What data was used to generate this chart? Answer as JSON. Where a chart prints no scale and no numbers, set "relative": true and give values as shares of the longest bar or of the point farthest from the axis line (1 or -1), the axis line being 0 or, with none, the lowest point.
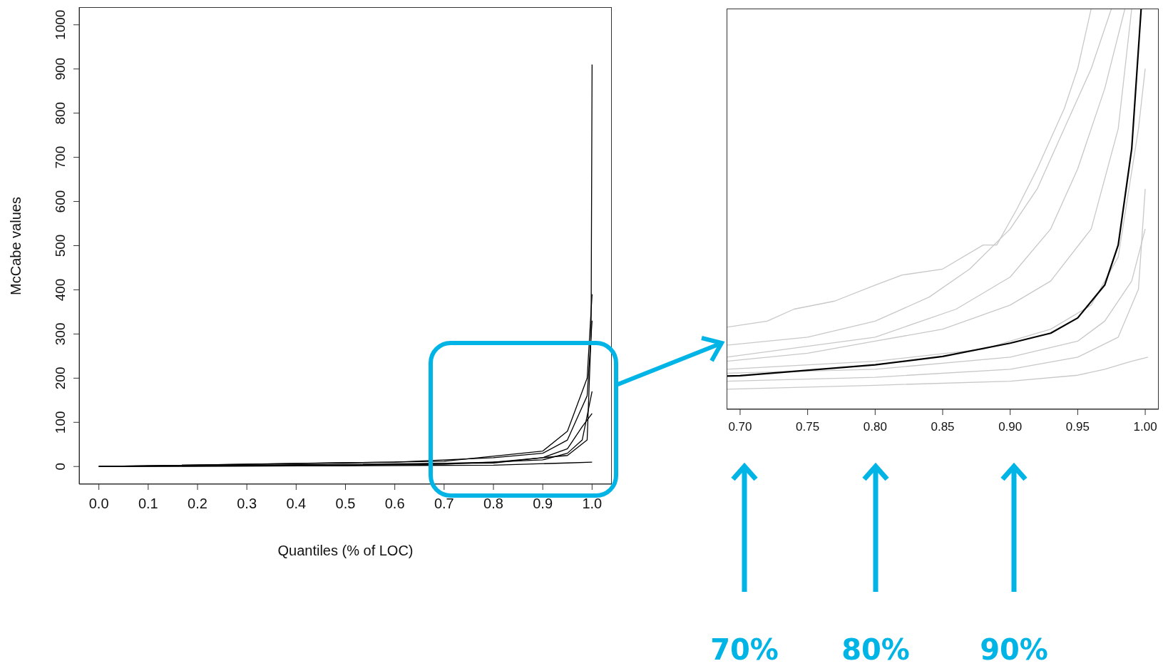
{
  "chart_data": [
    {
      "type": "line",
      "xlabel": "Quantiles (% of LOC)",
      "ylabel": "McCabe values",
      "xlim": [
        -0.04,
        1.04
      ],
      "ylim": [
        -40,
        1040
      ],
      "xticks": [
        {
          "value": 0,
          "label": "0.0"
        },
        {
          "value": 0.1,
          "label": "0.1"
        },
        {
          "value": 0.2,
          "label": "0.2"
        },
        {
          "value": 0.3,
          "label": "0.3"
        },
        {
          "value": 0.4,
          "label": "0.4"
        },
        {
          "value": 0.5,
          "label": "0.5"
        },
        {
          "value": 0.6,
          "label": "0.6"
        },
        {
          "value": 0.7,
          "label": "0.7"
        },
        {
          "value": 0.8,
          "label": "0.8"
        },
        {
          "value": 0.9,
          "label": "0.9"
        },
        {
          "value": 1,
          "label": "1.0"
        }
      ],
      "yticks": [
        0,
        100,
        200,
        300,
        400,
        500,
        600,
        700,
        800,
        900,
        1000
      ],
      "series": [
        {
          "color": "#000000",
          "x": [
            0,
            0.5,
            0.8,
            0.95,
            0.99,
            0.998,
            1.0
          ],
          "values": [
            0,
            2,
            10,
            25,
            60,
            300,
            910
          ]
        },
        {
          "color": "#000000",
          "x": [
            0,
            0.7,
            0.9,
            0.95,
            0.98,
            0.99,
            1.0
          ],
          "values": [
            0,
            12,
            35,
            80,
            170,
            200,
            390
          ]
        },
        {
          "color": "#000000",
          "x": [
            0,
            0.6,
            0.8,
            0.9,
            0.95,
            0.97,
            0.99,
            1.0
          ],
          "values": [
            0,
            10,
            20,
            30,
            60,
            110,
            160,
            330
          ]
        },
        {
          "color": "#000000",
          "x": [
            0,
            0.7,
            0.9,
            0.95,
            0.98,
            1.0
          ],
          "values": [
            0,
            5,
            15,
            30,
            60,
            170
          ]
        },
        {
          "color": "#000000",
          "x": [
            0,
            0.8,
            0.9,
            0.95,
            0.98,
            1.0
          ],
          "values": [
            0,
            8,
            20,
            40,
            90,
            120
          ]
        },
        {
          "color": "#000000",
          "x": [
            0,
            0.8,
            0.95,
            1.0
          ],
          "values": [
            0,
            3,
            8,
            10
          ]
        }
      ]
    },
    {
      "type": "line",
      "relative": true,
      "xlim": [
        0.69,
        1.01
      ],
      "xticks": [
        {
          "value": 0.7,
          "label": "0.70"
        },
        {
          "value": 0.75,
          "label": "0.75"
        },
        {
          "value": 0.8,
          "label": "0.80"
        },
        {
          "value": 0.85,
          "label": "0.85"
        },
        {
          "value": 0.9,
          "label": "0.90"
        },
        {
          "value": 0.95,
          "label": "0.95"
        },
        {
          "value": 1,
          "label": "1.00"
        }
      ],
      "annotations": [
        "70%",
        "80%",
        "90%"
      ],
      "series": [
        {
          "color": "#c8c8c8",
          "x": [
            0.69,
            0.72,
            0.74,
            0.77,
            0.8,
            0.82,
            0.85,
            0.88,
            0.89,
            0.905,
            0.92,
            0.94,
            0.95,
            0.96
          ],
          "values": [
            0.205,
            0.22,
            0.25,
            0.27,
            0.31,
            0.335,
            0.35,
            0.41,
            0.41,
            0.5,
            0.6,
            0.75,
            0.85,
            1.0
          ]
        },
        {
          "color": "#c8c8c8",
          "x": [
            0.69,
            0.75,
            0.8,
            0.84,
            0.87,
            0.9,
            0.92,
            0.94,
            0.96,
            0.975
          ],
          "values": [
            0.16,
            0.18,
            0.22,
            0.28,
            0.35,
            0.45,
            0.55,
            0.7,
            0.85,
            1.0
          ]
        },
        {
          "color": "#c8c8c8",
          "x": [
            0.69,
            0.75,
            0.8,
            0.85,
            0.9,
            0.93,
            0.96,
            0.98,
            0.99
          ],
          "values": [
            0.12,
            0.14,
            0.17,
            0.2,
            0.26,
            0.32,
            0.45,
            0.7,
            1.0
          ]
        },
        {
          "color": "#c8c8c8",
          "x": [
            0.69,
            0.8,
            0.86,
            0.9,
            0.93,
            0.95,
            0.97,
            0.985
          ],
          "values": [
            0.13,
            0.18,
            0.25,
            0.33,
            0.45,
            0.6,
            0.8,
            1.0
          ]
        },
        {
          "color": "#c8c8c8",
          "x": [
            0.69,
            0.8,
            0.88,
            0.93,
            0.96,
            0.98,
            0.995,
            1.0
          ],
          "values": [
            0.1,
            0.12,
            0.15,
            0.2,
            0.26,
            0.38,
            0.7,
            0.85
          ]
        },
        {
          "color": "#c8c8c8",
          "x": [
            0.69,
            0.8,
            0.9,
            0.95,
            0.97,
            0.99,
            1.0
          ],
          "values": [
            0.09,
            0.1,
            0.13,
            0.17,
            0.22,
            0.32,
            0.45
          ]
        },
        {
          "color": "#c8c8c8",
          "x": [
            0.69,
            0.8,
            0.9,
            0.95,
            0.98,
            0.995,
            1.0
          ],
          "values": [
            0.07,
            0.08,
            0.1,
            0.13,
            0.18,
            0.3,
            0.55
          ]
        },
        {
          "color": "#c8c8c8",
          "x": [
            0.69,
            0.8,
            0.9,
            0.95,
            0.97,
            0.99,
            1.002
          ],
          "values": [
            0.05,
            0.06,
            0.07,
            0.085,
            0.1,
            0.12,
            0.13
          ]
        },
        {
          "color": "#000000",
          "x": [
            0.69,
            0.7,
            0.8,
            0.85,
            0.9,
            0.93,
            0.95,
            0.97,
            0.98,
            0.99,
            0.997
          ],
          "values": [
            0.083,
            0.084,
            0.111,
            0.132,
            0.165,
            0.19,
            0.228,
            0.31,
            0.41,
            0.65,
            1.0
          ]
        }
      ]
    }
  ]
}
